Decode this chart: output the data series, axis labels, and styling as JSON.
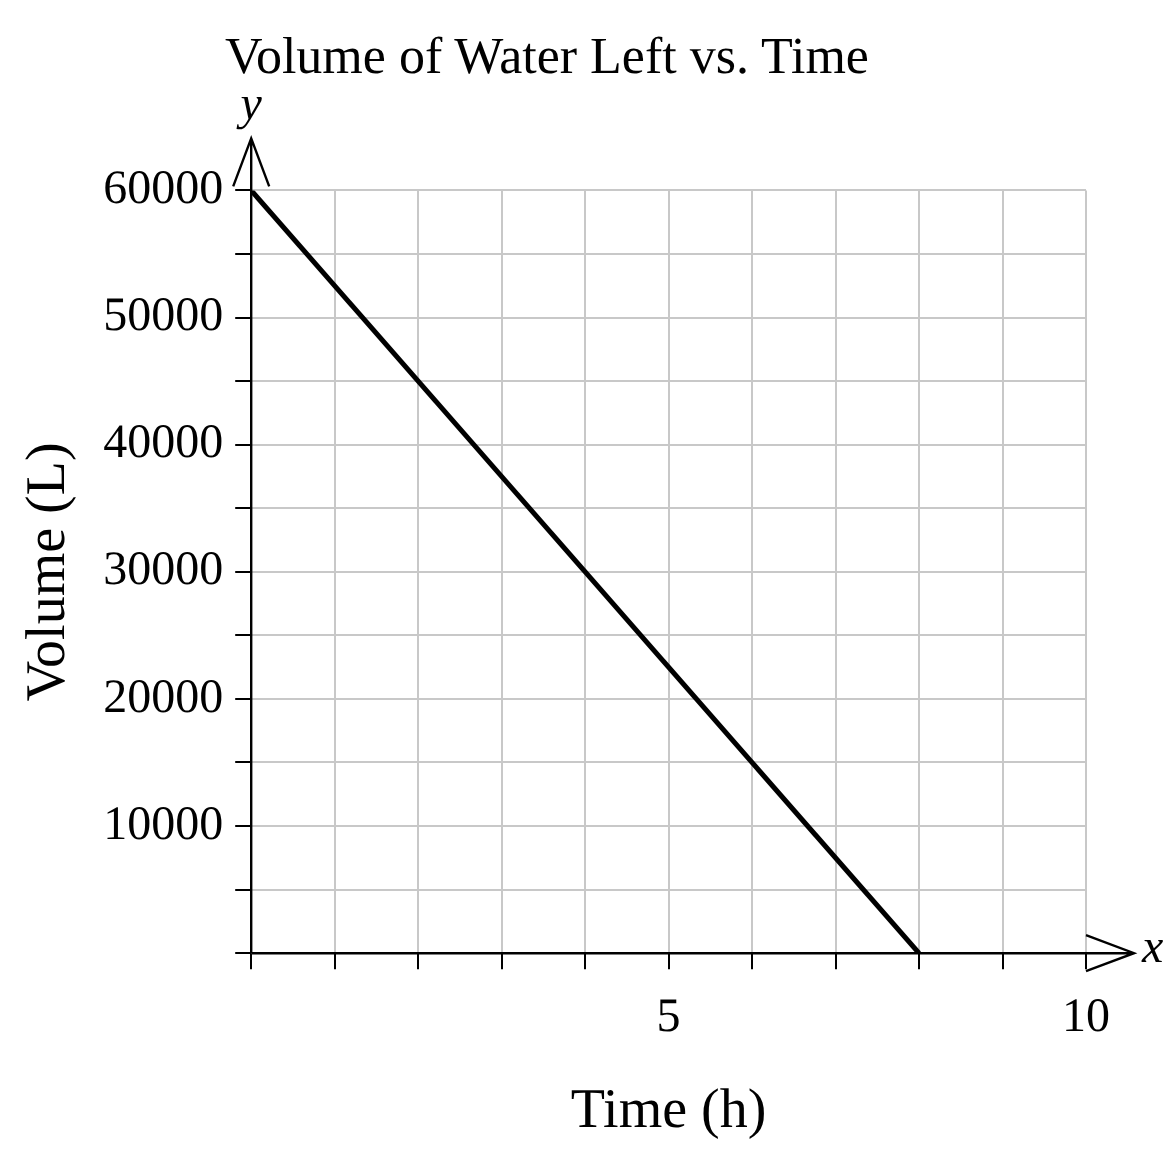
{
  "chart_data": {
    "type": "line",
    "title": "Volume of Water Left vs. Time",
    "xlabel": "Time (h)",
    "ylabel": "Volume (L)",
    "annotations": [
      "y",
      "x"
    ],
    "x": [
      0,
      8
    ],
    "series": [
      {
        "color": "#000000",
        "values": [
          60000,
          0
        ]
      }
    ],
    "xlim": [
      0,
      10
    ],
    "ylim": [
      0,
      60000
    ],
    "xticks": [
      {
        "value": 0,
        "label": null
      },
      {
        "value": 1,
        "label": null
      },
      {
        "value": 2,
        "label": null
      },
      {
        "value": 3,
        "label": null
      },
      {
        "value": 4,
        "label": null
      },
      5,
      {
        "value": 6,
        "label": null
      },
      {
        "value": 7,
        "label": null
      },
      {
        "value": 8,
        "label": null
      },
      {
        "value": 9,
        "label": null
      },
      10
    ],
    "yticks": [
      {
        "value": 0,
        "label": null
      },
      {
        "value": 5000,
        "label": null
      },
      10000,
      {
        "value": 15000,
        "label": null
      },
      20000,
      {
        "value": 25000,
        "label": null
      },
      30000,
      {
        "value": 35000,
        "label": null
      },
      40000,
      {
        "value": 45000,
        "label": null
      },
      50000,
      {
        "value": 55000,
        "label": null
      },
      60000
    ],
    "grid": true
  }
}
